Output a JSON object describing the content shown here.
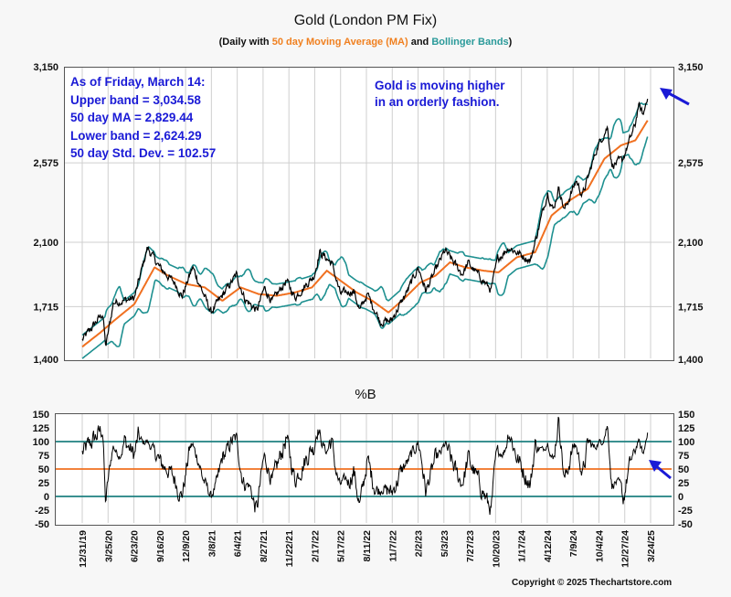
{
  "chart_data": [
    {
      "type": "line",
      "title": "Gold (London PM Fix)",
      "subtitle": {
        "prefix": "(Daily with ",
        "ma": "50 day Moving Average (MA)",
        "mid": " and ",
        "bb": "Bollinger Bands",
        "suffix": ")"
      },
      "ylim": [
        1400,
        3150
      ],
      "yticks": [
        "1,400",
        "1,715",
        "2,100",
        "2,575",
        "3,150"
      ],
      "ytick_values": [
        1400,
        1715,
        2100,
        2575,
        3150
      ],
      "xticks": [
        "12/31/19",
        "3/25/20",
        "6/23/20",
        "9/16/20",
        "12/9/20",
        "3/8/21",
        "6/4/21",
        "8/27/21",
        "11/22/21",
        "2/17/22",
        "5/17/22",
        "8/11/22",
        "11/7/22",
        "2/2/23",
        "5/3/23",
        "7/27/23",
        "10/20/23",
        "1/17/24",
        "4/12/24",
        "7/9/24",
        "10/4/24",
        "12/27/24",
        "3/24/25"
      ],
      "x_start": "2019-12-31",
      "x_end": "2025-03-24",
      "grid": true,
      "price_anchors": [
        [
          "2019-12-31",
          1515
        ],
        [
          "2020-03-09",
          1675
        ],
        [
          "2020-03-19",
          1475
        ],
        [
          "2020-04-14",
          1740
        ],
        [
          "2020-06-23",
          1765
        ],
        [
          "2020-08-06",
          2067
        ],
        [
          "2020-09-16",
          1950
        ],
        [
          "2020-11-09",
          1850
        ],
        [
          "2020-11-30",
          1775
        ],
        [
          "2021-01-05",
          1950
        ],
        [
          "2021-03-08",
          1680
        ],
        [
          "2021-06-01",
          1905
        ],
        [
          "2021-06-30",
          1760
        ],
        [
          "2021-08-09",
          1690
        ],
        [
          "2021-09-03",
          1825
        ],
        [
          "2021-09-30",
          1745
        ],
        [
          "2021-11-16",
          1870
        ],
        [
          "2021-12-15",
          1770
        ],
        [
          "2022-02-17",
          1900
        ],
        [
          "2022-03-08",
          2040
        ],
        [
          "2022-04-18",
          1975
        ],
        [
          "2022-05-16",
          1790
        ],
        [
          "2022-06-30",
          1810
        ],
        [
          "2022-07-21",
          1690
        ],
        [
          "2022-08-15",
          1790
        ],
        [
          "2022-09-28",
          1625
        ],
        [
          "2022-11-03",
          1630
        ],
        [
          "2022-12-30",
          1815
        ],
        [
          "2023-02-02",
          1950
        ],
        [
          "2023-02-28",
          1810
        ],
        [
          "2023-05-03",
          2050
        ],
        [
          "2023-06-30",
          1910
        ],
        [
          "2023-07-20",
          1975
        ],
        [
          "2023-10-05",
          1815
        ],
        [
          "2023-10-27",
          2000
        ],
        [
          "2023-12-04",
          2070
        ],
        [
          "2024-02-14",
          1990
        ],
        [
          "2024-04-12",
          2400
        ],
        [
          "2024-05-01",
          2290
        ],
        [
          "2024-05-20",
          2430
        ],
        [
          "2024-06-07",
          2290
        ],
        [
          "2024-07-17",
          2470
        ],
        [
          "2024-08-07",
          2380
        ],
        [
          "2024-09-26",
          2670
        ],
        [
          "2024-10-30",
          2790
        ],
        [
          "2024-11-14",
          2560
        ],
        [
          "2024-12-19",
          2590
        ],
        [
          "2025-01-31",
          2800
        ],
        [
          "2025-02-11",
          2920
        ],
        [
          "2025-02-28",
          2860
        ],
        [
          "2025-03-14",
          2985
        ]
      ],
      "ma_anchors": [
        [
          "2019-12-31",
          1475
        ],
        [
          "2020-03-01",
          1560
        ],
        [
          "2020-04-15",
          1630
        ],
        [
          "2020-06-23",
          1730
        ],
        [
          "2020-08-30",
          1950
        ],
        [
          "2020-10-15",
          1900
        ],
        [
          "2020-12-15",
          1850
        ],
        [
          "2021-02-15",
          1830
        ],
        [
          "2021-04-15",
          1750
        ],
        [
          "2021-06-15",
          1830
        ],
        [
          "2021-08-15",
          1790
        ],
        [
          "2021-10-15",
          1780
        ],
        [
          "2021-12-15",
          1800
        ],
        [
          "2022-02-10",
          1830
        ],
        [
          "2022-04-01",
          1930
        ],
        [
          "2022-05-25",
          1860
        ],
        [
          "2022-07-10",
          1800
        ],
        [
          "2022-09-01",
          1750
        ],
        [
          "2022-10-25",
          1680
        ],
        [
          "2022-12-15",
          1760
        ],
        [
          "2023-02-10",
          1860
        ],
        [
          "2023-04-01",
          1900
        ],
        [
          "2023-05-20",
          1980
        ],
        [
          "2023-07-10",
          1950
        ],
        [
          "2023-09-10",
          1930
        ],
        [
          "2023-10-30",
          1920
        ],
        [
          "2023-12-30",
          2010
        ],
        [
          "2024-03-01",
          2040
        ],
        [
          "2024-04-25",
          2260
        ],
        [
          "2024-06-25",
          2350
        ],
        [
          "2024-08-25",
          2420
        ],
        [
          "2024-10-20",
          2600
        ],
        [
          "2024-12-15",
          2680
        ],
        [
          "2025-02-01",
          2710
        ],
        [
          "2025-03-14",
          2829
        ]
      ],
      "upper_band": 3034.58,
      "ma_latest": 2829.44,
      "lower_band": 2624.29,
      "std_dev": 102.57,
      "series": [
        {
          "name": "Gold",
          "color": "#000000"
        },
        {
          "name": "50 day Moving Average (MA)",
          "color": "#f07020"
        },
        {
          "name": "Bollinger Bands",
          "color": "#1e9090"
        }
      ]
    },
    {
      "type": "line",
      "title": "%B",
      "ylim": [
        -50,
        150
      ],
      "yticks": [
        "-50",
        "-25",
        "0",
        "25",
        "50",
        "75",
        "100",
        "125",
        "150"
      ],
      "ytick_values": [
        -50,
        -25,
        0,
        25,
        50,
        75,
        100,
        125,
        150
      ],
      "reference_lines": [
        {
          "value": 100,
          "color": "#1e8080"
        },
        {
          "value": 50,
          "color": "#f07020"
        },
        {
          "value": 0,
          "color": "#1e8080"
        }
      ],
      "series": [
        {
          "name": "%B",
          "color": "#000000"
        }
      ]
    }
  ],
  "annotations": {
    "stats_lines": [
      "As of Friday, March 14:",
      "Upper band = 3,034.58",
      "50 day MA = 2,829.44",
      "Lower band = 2,624.29",
      "50 day Std. Dev. = 102.57"
    ],
    "note_lines": [
      "Gold is moving higher",
      "in an orderly fashion."
    ],
    "arrow_color": "#1a1ad6"
  },
  "footer": {
    "copyright": "Copyright © 2025 Thechartstore.com"
  }
}
